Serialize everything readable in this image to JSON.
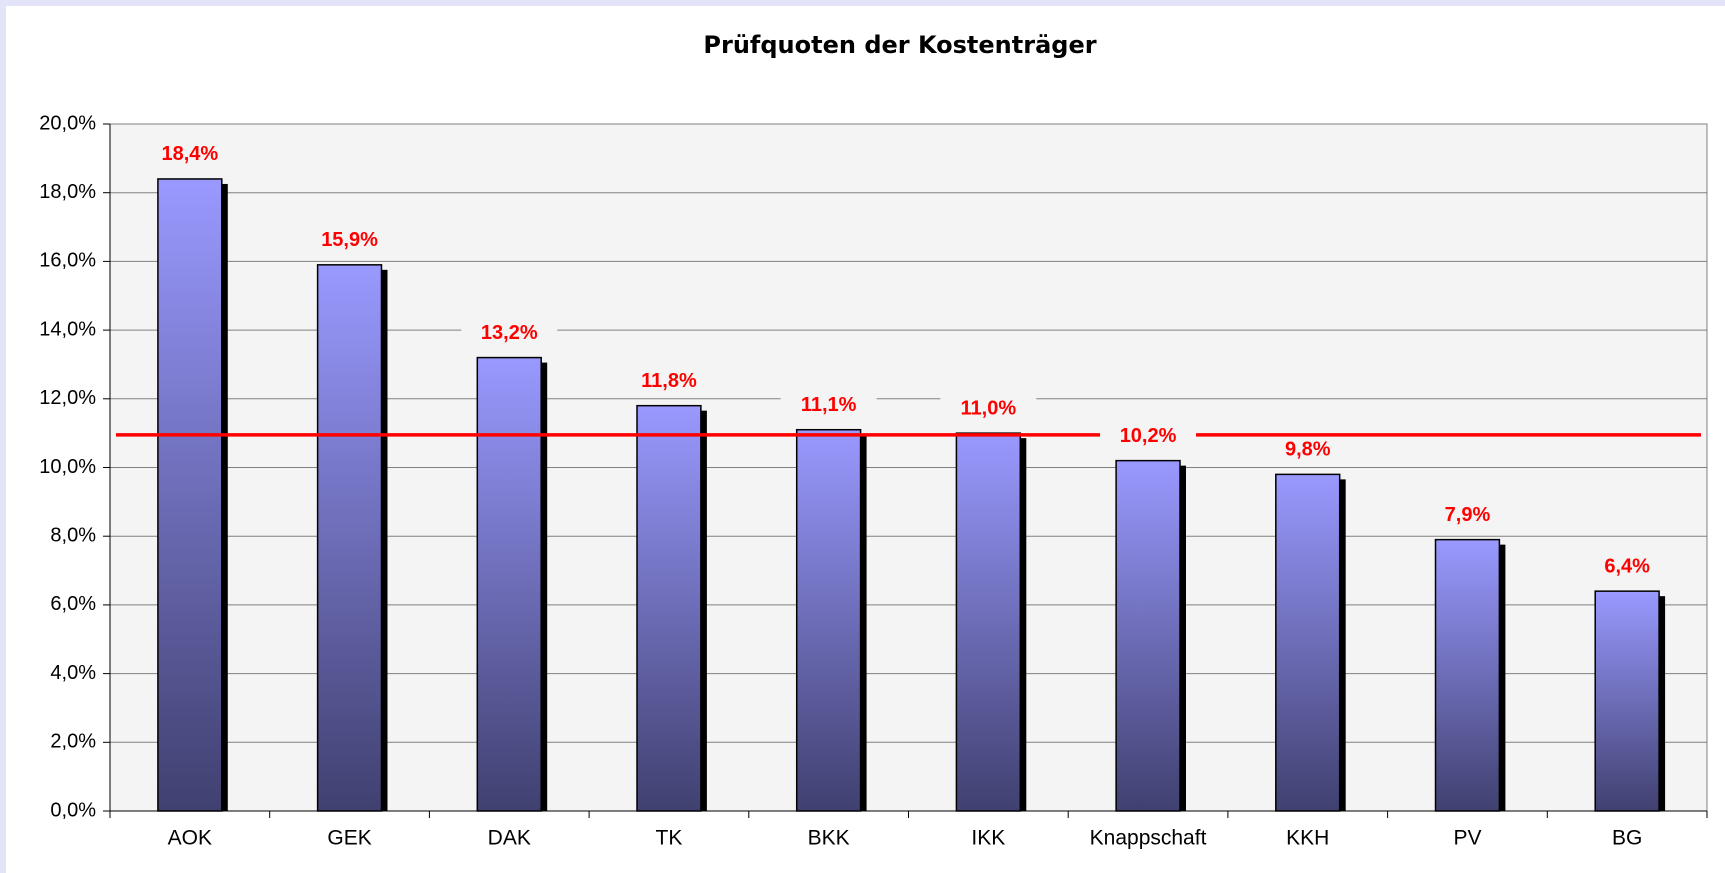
{
  "chart_data": {
    "type": "bar",
    "title": "Prüfquoten der Kostenträger",
    "categories": [
      "AOK",
      "GEK",
      "DAK",
      "TK",
      "BKK",
      "IKK",
      "Knappschaft",
      "KKH",
      "PV",
      "BG"
    ],
    "values": [
      18.4,
      15.9,
      13.2,
      11.8,
      11.1,
      11.0,
      10.2,
      9.8,
      7.9,
      6.4
    ],
    "value_labels": [
      "18,4%",
      "15,9%",
      "13,2%",
      "11,8%",
      "11,1%",
      "11,0%",
      "10,2%",
      "9,8%",
      "7,9%",
      "6,4%"
    ],
    "color": "#9999ff",
    "label_color": "#ff0000",
    "ylim": [
      0,
      20
    ],
    "yticks": [
      {
        "value": 0,
        "label": "0,0%"
      },
      {
        "value": 2,
        "label": "2,0%"
      },
      {
        "value": 4,
        "label": "4,0%"
      },
      {
        "value": 6,
        "label": "6,0%"
      },
      {
        "value": 8,
        "label": "8,0%"
      },
      {
        "value": 10,
        "label": "10,0%"
      },
      {
        "value": 12,
        "label": "12,0%"
      },
      {
        "value": 14,
        "label": "14,0%"
      },
      {
        "value": 16,
        "label": "16,0%"
      },
      {
        "value": 18,
        "label": "18,0%"
      },
      {
        "value": 20,
        "label": "20,0%"
      }
    ],
    "grid": true,
    "reference_line": {
      "value": 10.95,
      "color": "#ff0000"
    }
  }
}
